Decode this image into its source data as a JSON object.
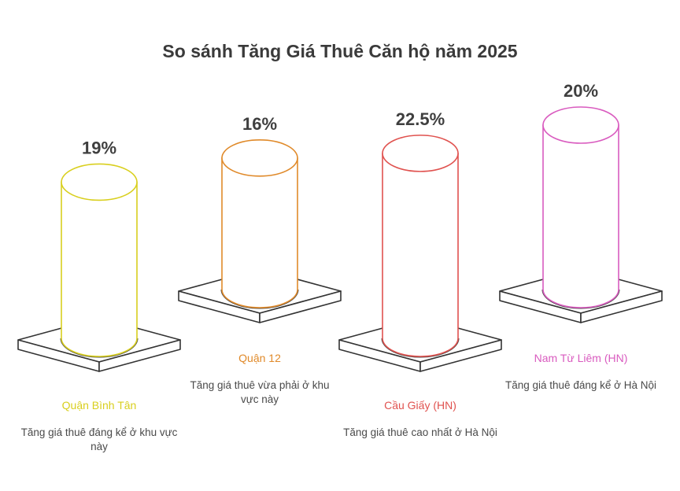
{
  "chart_data": {
    "type": "bar",
    "title": "So sánh Tăng Giá Thuê Căn hộ năm 2025",
    "categories": [
      "Quận Bình Tân",
      "Quận 12",
      "Cầu Giấy (HN)",
      "Nam Từ Liêm (HN)"
    ],
    "values": [
      19,
      16,
      22.5,
      20
    ],
    "value_labels": [
      "19%",
      "16%",
      "22.5%",
      "20%"
    ],
    "descriptions": [
      "Tăng giá thuê đáng kể ở khu vực này",
      "Tăng giá thuê vừa phải ở khu vực này",
      "Tăng giá thuê cao nhất ở Hà Nội",
      "Tăng giá thuê đáng kể ở Hà Nội"
    ],
    "colors": [
      "#d9cf1e",
      "#e08a2a",
      "#e0524f",
      "#d95bbf"
    ],
    "grid": false,
    "legend": "none"
  }
}
